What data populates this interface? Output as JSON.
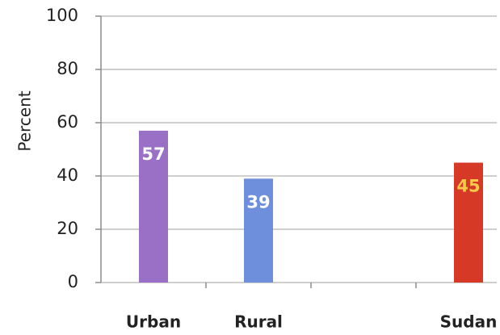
{
  "chart_data": {
    "type": "bar",
    "y_label": "Percent",
    "categories": [
      "Urban",
      "Rural",
      null,
      "Sudan"
    ],
    "values": [
      57,
      39,
      null,
      45
    ],
    "colors": [
      "#9a6fc6",
      "#6e8fdc",
      null,
      "#d63a27"
    ],
    "label_colors": [
      "#ffffff",
      "#ffffff",
      null,
      "#f7c948"
    ],
    "ylim": [
      0,
      100
    ],
    "yticks": [
      0,
      20,
      40,
      60,
      80,
      100
    ],
    "grid": true
  }
}
